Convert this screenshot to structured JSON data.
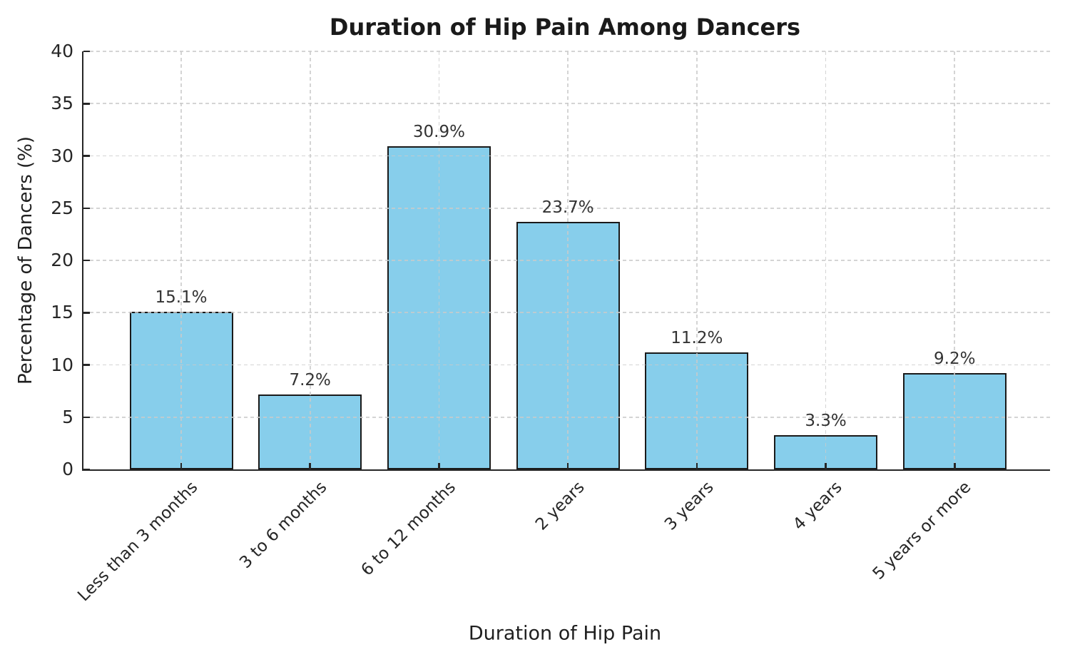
{
  "chart_data": {
    "type": "bar",
    "title": "Duration of Hip Pain Among Dancers",
    "xlabel": "Duration of Hip Pain",
    "ylabel": "Percentage of Dancers (%)",
    "categories": [
      "Less than 3 months",
      "3 to 6 months",
      "6 to 12 months",
      "2 years",
      "3 years",
      "4 years",
      "5 years or more"
    ],
    "values": [
      15.1,
      7.2,
      30.9,
      23.7,
      11.2,
      3.3,
      9.2
    ],
    "value_labels": [
      "15.1%",
      "7.2%",
      "30.9%",
      "23.7%",
      "11.2%",
      "3.3%",
      "9.2%"
    ],
    "ylim": [
      0,
      40
    ],
    "yticks": [
      0,
      5,
      10,
      15,
      20,
      25,
      30,
      35,
      40
    ],
    "grid": true,
    "grid_style": "dashed",
    "legend": "none",
    "xtick_rotation": 45,
    "bar_color": "#87CEEB",
    "bar_edge_color": "#1a1a1a",
    "text_color": "#262626"
  }
}
